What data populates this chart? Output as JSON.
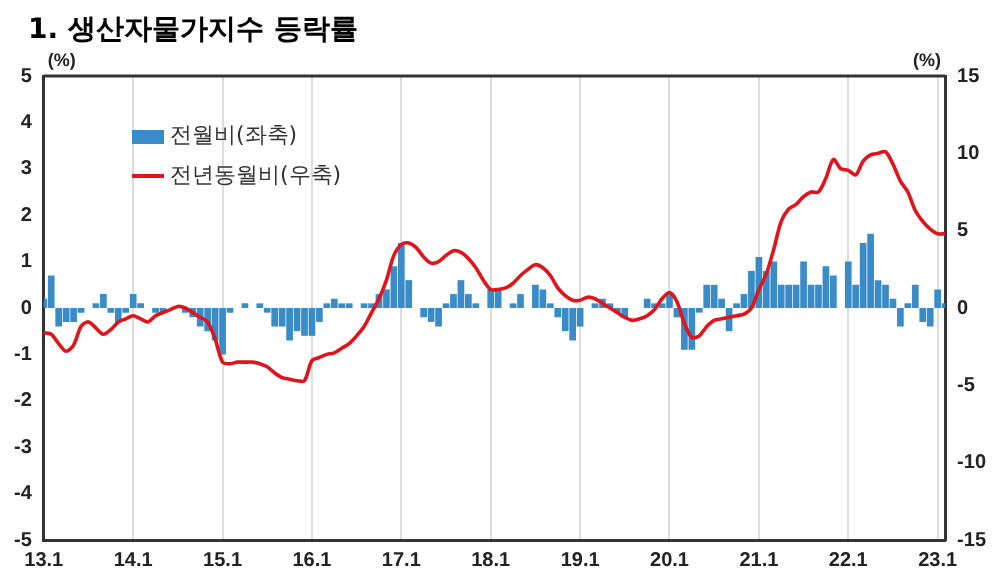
{
  "chart_data": {
    "type": "bar",
    "title": "1. 생산자물가지수 등락률",
    "ylabel": "(%)",
    "y2label": "(%)",
    "categories": [
      "13.1",
      null,
      null,
      null,
      null,
      null,
      null,
      null,
      null,
      null,
      null,
      null,
      "14.1",
      null,
      null,
      null,
      null,
      null,
      null,
      null,
      null,
      null,
      null,
      null,
      "15.1",
      null,
      null,
      null,
      null,
      null,
      null,
      null,
      null,
      null,
      null,
      null,
      "16.1",
      null,
      null,
      null,
      null,
      null,
      null,
      null,
      null,
      null,
      null,
      null,
      "17.1",
      null,
      null,
      null,
      null,
      null,
      null,
      null,
      null,
      null,
      null,
      null,
      "18.1",
      null,
      null,
      null,
      null,
      null,
      null,
      null,
      null,
      null,
      null,
      null,
      "19.1",
      null,
      null,
      null,
      null,
      null,
      null,
      null,
      null,
      null,
      null,
      null,
      "20.1",
      null,
      null,
      null,
      null,
      null,
      null,
      null,
      null,
      null,
      null,
      null,
      "21.1",
      null,
      null,
      null,
      null,
      null,
      null,
      null,
      null,
      null,
      null,
      null,
      "22.1",
      null,
      null,
      null,
      null,
      null,
      null,
      null,
      null,
      null,
      null,
      null,
      "23.1",
      null
    ],
    "series": [
      {
        "name": "전월비(좌축)",
        "color": "#3a8cc8",
        "values": [
          0.2,
          0.7,
          -0.4,
          -0.3,
          -0.3,
          -0.1,
          0.0,
          0.1,
          0.3,
          -0.1,
          -0.3,
          -0.1,
          0.3,
          0.1,
          0.0,
          -0.1,
          -0.1,
          0.0,
          0.0,
          -0.1,
          -0.2,
          -0.4,
          -0.5,
          -0.7,
          -1.0,
          -0.1,
          0.0,
          0.1,
          0.0,
          0.1,
          -0.1,
          -0.4,
          -0.4,
          -0.7,
          -0.5,
          -0.6,
          -0.6,
          -0.3,
          0.1,
          0.2,
          0.1,
          0.1,
          0.0,
          0.1,
          0.1,
          0.3,
          0.4,
          0.9,
          1.4,
          0.6,
          0.0,
          -0.2,
          -0.3,
          -0.4,
          0.1,
          0.3,
          0.6,
          0.3,
          0.1,
          0.0,
          0.4,
          0.4,
          0.0,
          0.1,
          0.3,
          0.0,
          0.5,
          0.4,
          0.1,
          -0.2,
          -0.5,
          -0.7,
          -0.4,
          0.0,
          0.1,
          0.2,
          0.1,
          -0.1,
          -0.2,
          0.0,
          0.0,
          0.2,
          0.1,
          0.1,
          0.3,
          -0.2,
          -0.9,
          -0.9,
          -0.1,
          0.5,
          0.5,
          0.2,
          -0.5,
          0.1,
          0.3,
          0.8,
          1.1,
          0.8,
          1.0,
          0.5,
          0.5,
          0.5,
          1.0,
          0.5,
          0.5,
          0.9,
          0.7,
          0.0,
          1.0,
          0.5,
          1.4,
          1.6,
          0.6,
          0.5,
          0.2,
          -0.4,
          0.1,
          0.5,
          -0.3,
          -0.4,
          0.4,
          0.1
        ]
      },
      {
        "name": "전년동월비(우축)",
        "type": "line",
        "axis": "y2",
        "color": "#e0141b",
        "values": [
          -1.6,
          -1.7,
          -2.3,
          -2.8,
          -2.4,
          -1.2,
          -0.9,
          -1.3,
          -1.7,
          -1.4,
          -0.9,
          -0.7,
          -0.5,
          -0.7,
          -0.9,
          -0.5,
          -0.3,
          -0.1,
          0.1,
          0.0,
          -0.3,
          -0.6,
          -0.9,
          -2.0,
          -3.5,
          -3.6,
          -3.5,
          -3.5,
          -3.5,
          -3.6,
          -3.8,
          -4.2,
          -4.5,
          -4.6,
          -4.7,
          -4.7,
          -3.4,
          -3.2,
          -3.0,
          -2.9,
          -2.6,
          -2.3,
          -1.8,
          -1.2,
          -0.3,
          0.6,
          1.8,
          3.4,
          4.1,
          4.2,
          3.9,
          3.3,
          2.9,
          3.0,
          3.4,
          3.7,
          3.6,
          3.2,
          2.6,
          1.8,
          1.2,
          1.2,
          1.3,
          1.6,
          2.1,
          2.5,
          2.8,
          2.6,
          2.1,
          1.3,
          0.8,
          0.5,
          0.5,
          0.7,
          0.6,
          0.3,
          0.0,
          -0.3,
          -0.6,
          -0.8,
          -0.7,
          -0.5,
          -0.1,
          0.6,
          1.0,
          0.4,
          -1.0,
          -1.9,
          -1.8,
          -1.2,
          -0.8,
          -0.7,
          -0.6,
          -0.5,
          -0.4,
          0.0,
          1.2,
          2.2,
          3.8,
          5.6,
          6.4,
          6.7,
          7.2,
          7.5,
          7.5,
          8.4,
          9.6,
          9.0,
          8.9,
          8.6,
          9.5,
          9.9,
          10.0,
          10.1,
          9.3,
          8.2,
          7.5,
          6.3,
          5.6,
          5.1,
          4.8,
          4.8
        ]
      }
    ],
    "ylim": [
      -5,
      5
    ],
    "yticks": [
      -5,
      -4,
      -3,
      -2,
      -1,
      0,
      1,
      2,
      3,
      4,
      5
    ],
    "y2lim": [
      -15,
      15
    ],
    "y2ticks": [
      -15,
      -10,
      -5,
      0,
      5,
      10,
      15
    ],
    "grid": "x",
    "legend": "top left"
  }
}
